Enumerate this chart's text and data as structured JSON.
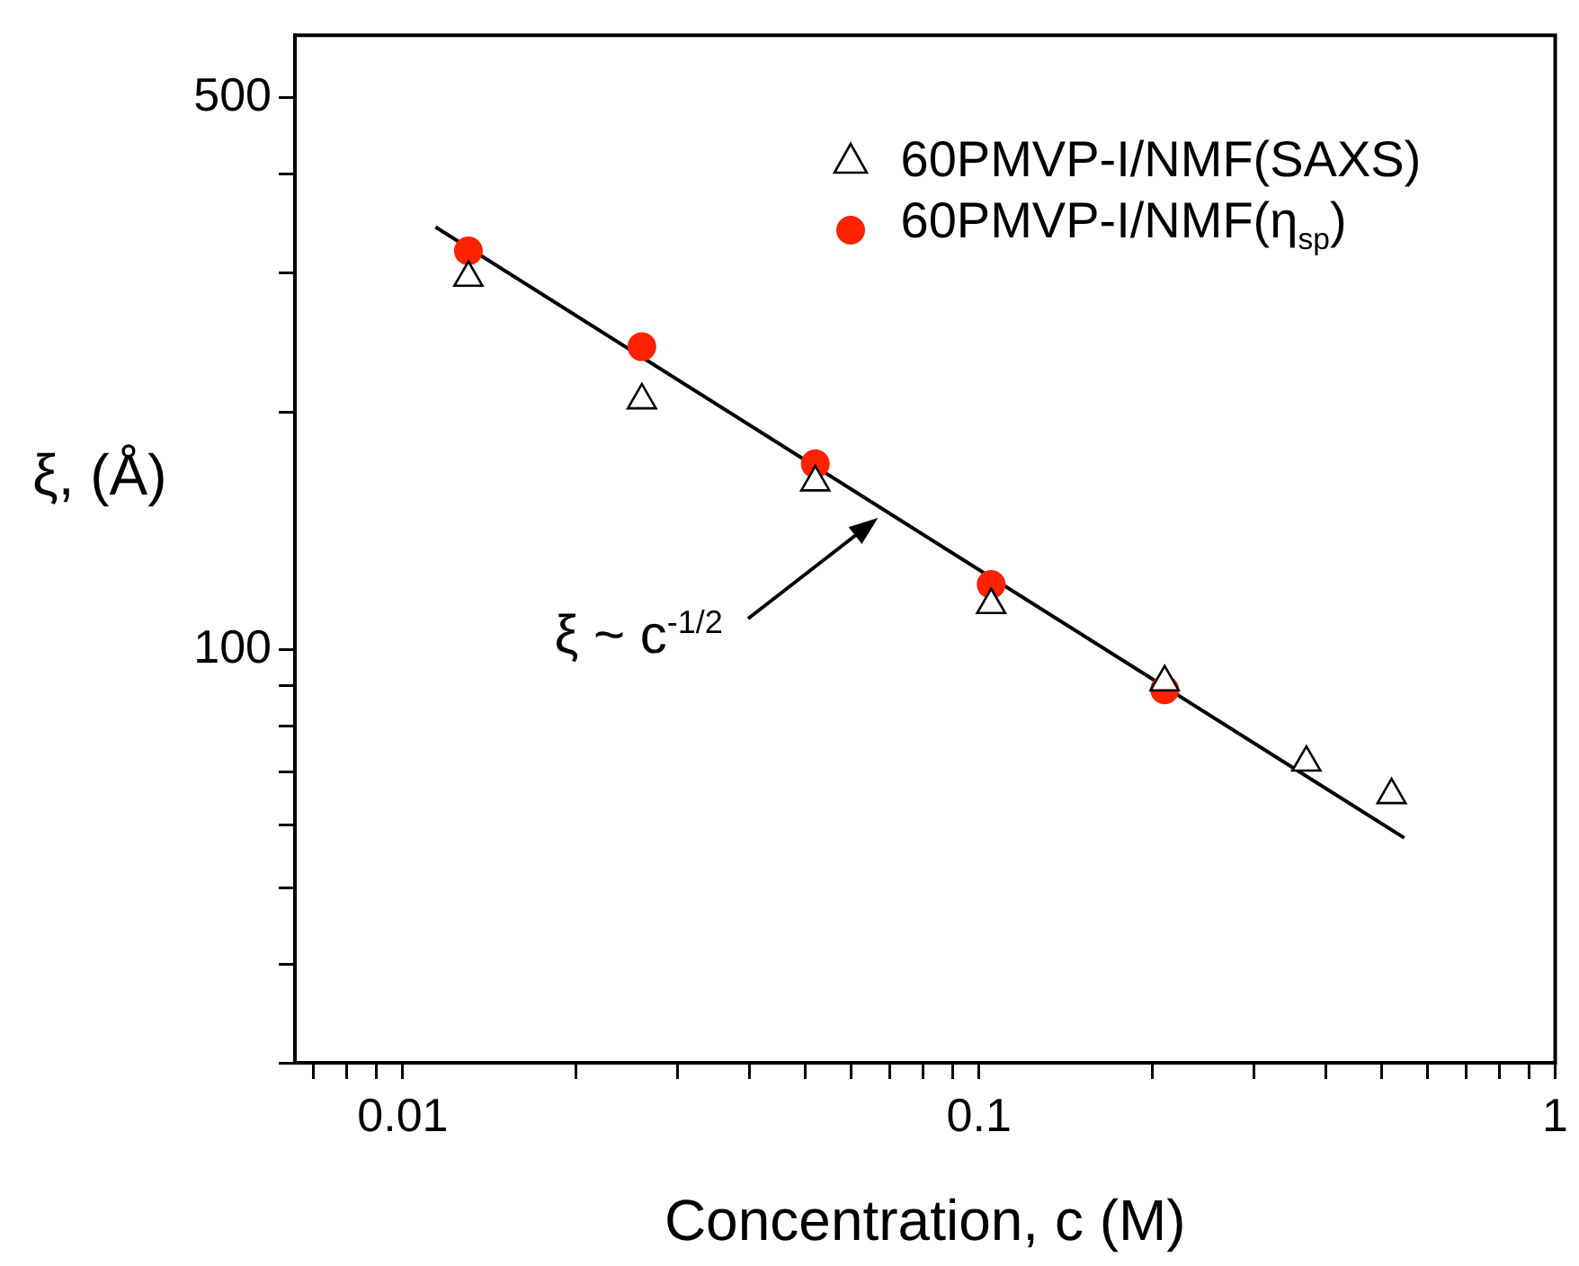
{
  "chart_data": {
    "type": "scatter",
    "xlabel": "Concentration, c (M)",
    "ylabel": "ξ, (Å)",
    "log": "xy",
    "grid": false,
    "legend": "top right",
    "xlim": [
      0.0065,
      1
    ],
    "ylim": [
      30,
      600
    ],
    "xticks": [
      {
        "value": 0.007,
        "label": null
      },
      {
        "value": 0.008,
        "label": null
      },
      {
        "value": 0.009,
        "label": null
      },
      0.01,
      {
        "value": 0.02,
        "label": null
      },
      {
        "value": 0.03,
        "label": null
      },
      {
        "value": 0.04,
        "label": null
      },
      {
        "value": 0.05,
        "label": null
      },
      {
        "value": 0.06,
        "label": null
      },
      {
        "value": 0.07,
        "label": null
      },
      {
        "value": 0.08,
        "label": null
      },
      {
        "value": 0.09,
        "label": null
      },
      0.1,
      {
        "value": 0.2,
        "label": null
      },
      {
        "value": 0.3,
        "label": null
      },
      {
        "value": 0.4,
        "label": null
      },
      {
        "value": 0.5,
        "label": null
      },
      {
        "value": 0.6,
        "label": null
      },
      {
        "value": 0.7,
        "label": null
      },
      {
        "value": 0.8,
        "label": null
      },
      {
        "value": 0.9,
        "label": null
      },
      1
    ],
    "yticks": [
      {
        "value": 30,
        "label": null
      },
      {
        "value": 40,
        "label": null
      },
      {
        "value": 50,
        "label": null
      },
      {
        "value": 60,
        "label": null
      },
      {
        "value": 70,
        "label": null
      },
      {
        "value": 80,
        "label": null
      },
      {
        "value": 90,
        "label": null
      },
      100,
      {
        "value": 200,
        "label": null
      },
      {
        "value": 300,
        "label": null
      },
      {
        "value": 400,
        "label": null
      },
      500
    ],
    "annotations": [
      "ξ ~ c$^{-1/2}$"
    ],
    "series": [
      {
        "name": "60PMVP-I/NMF(SAXS)",
        "color": "#000000",
        "marker": "triangle",
        "x": [
          0.013,
          0.026,
          0.052,
          0.105,
          0.21,
          0.37,
          0.52
        ],
        "values": [
          296,
          207,
          163,
          114,
          91,
          72,
          65.5
        ]
      },
      {
        "name": "60PMVP-I/NMF(η$_{sp}$)",
        "color": "#ff2200",
        "marker": "circle",
        "x": [
          0.013,
          0.026,
          0.052,
          0.105,
          0.21
        ],
        "values": [
          320,
          242,
          172,
          121,
          89
        ]
      },
      {
        "type": "line",
        "color": "#000000",
        "marker": "none",
        "x": [
          0.0114,
          0.547
        ],
        "values": [
          343,
          57.8
        ]
      }
    ]
  }
}
